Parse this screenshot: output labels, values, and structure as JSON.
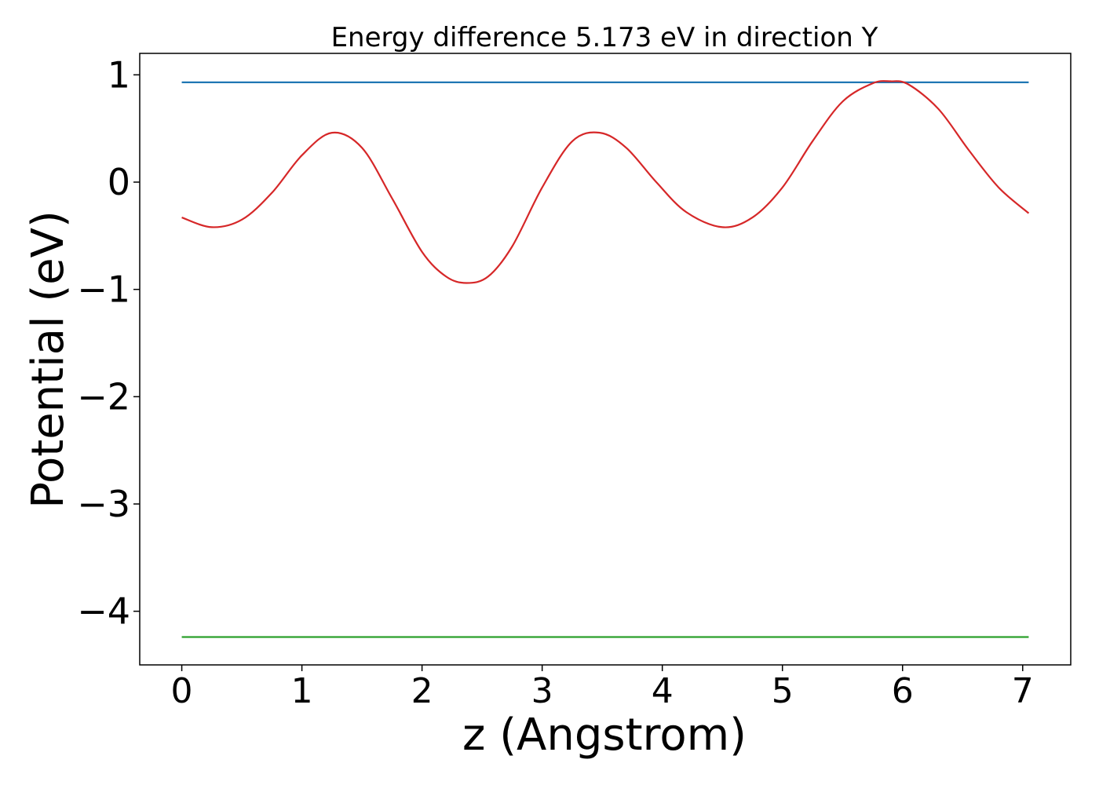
{
  "chart_data": {
    "type": "line",
    "title": "Energy difference 5.173 eV in direction Y",
    "xlabel": "z (Angstrom)",
    "ylabel": "Potential (eV)",
    "xlim": [
      -0.35,
      7.4
    ],
    "ylim": [
      -4.5,
      1.2
    ],
    "x_ticks": [
      0,
      1,
      2,
      3,
      4,
      5,
      6,
      7
    ],
    "y_ticks": [
      1,
      0,
      -1,
      -2,
      -3,
      -4
    ],
    "x_tick_labels": [
      "0",
      "1",
      "2",
      "3",
      "4",
      "5",
      "6",
      "7"
    ],
    "y_tick_labels": [
      "1",
      "0",
      "−1",
      "−2",
      "−3",
      "−4"
    ],
    "grid": false,
    "series": [
      {
        "color": "#1f77b4",
        "x": [
          0,
          7.05
        ],
        "y": [
          0.93,
          0.93
        ]
      },
      {
        "color": "#2ca02c",
        "x": [
          0,
          7.05
        ],
        "y": [
          -4.24,
          -4.24
        ]
      },
      {
        "color": "#d62728",
        "x": [
          0.0,
          0.25,
          0.5,
          0.75,
          1.0,
          1.25,
          1.5,
          1.75,
          2.0,
          2.2,
          2.37,
          2.55,
          2.75,
          3.0,
          3.25,
          3.48,
          3.7,
          3.95,
          4.2,
          4.5,
          4.75,
          5.0,
          5.25,
          5.5,
          5.75,
          5.9,
          6.05,
          6.3,
          6.55,
          6.8,
          7.05
        ],
        "y": [
          -0.33,
          -0.42,
          -0.35,
          -0.1,
          0.25,
          0.46,
          0.32,
          -0.15,
          -0.65,
          -0.88,
          -0.94,
          -0.88,
          -0.6,
          -0.05,
          0.38,
          0.46,
          0.32,
          0.0,
          -0.28,
          -0.42,
          -0.33,
          -0.05,
          0.38,
          0.75,
          0.92,
          0.94,
          0.91,
          0.68,
          0.3,
          -0.05,
          -0.29
        ]
      }
    ]
  }
}
